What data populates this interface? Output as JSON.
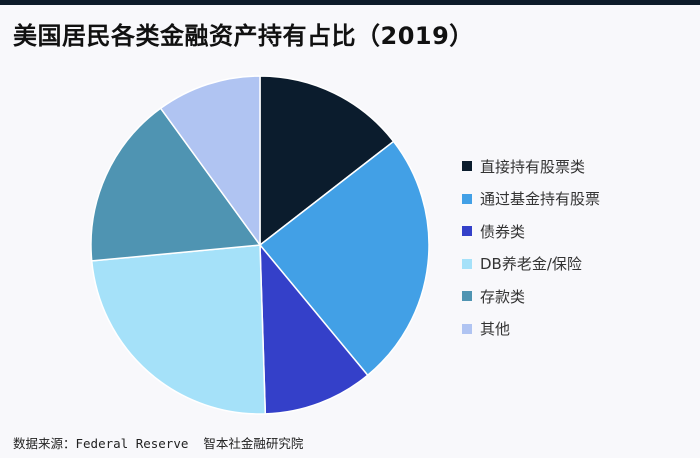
{
  "chart_data": {
    "type": "pie",
    "title": "美国居民各类金融资产持有占比（2019）",
    "categories": [
      "直接持有股票类",
      "通过基金持有股票",
      "债券类",
      "DB养老金/保险",
      "存款类",
      "其他"
    ],
    "values": [
      14.5,
      24.5,
      10.5,
      24.0,
      16.5,
      10.0
    ],
    "colors": [
      "#0b1c2d",
      "#42a0e6",
      "#3440c9",
      "#a5e1f9",
      "#4f94b2",
      "#b0c4f2"
    ],
    "legend_position": "right",
    "source": "数据来源：Federal Reserve  智本社金融研究院"
  }
}
